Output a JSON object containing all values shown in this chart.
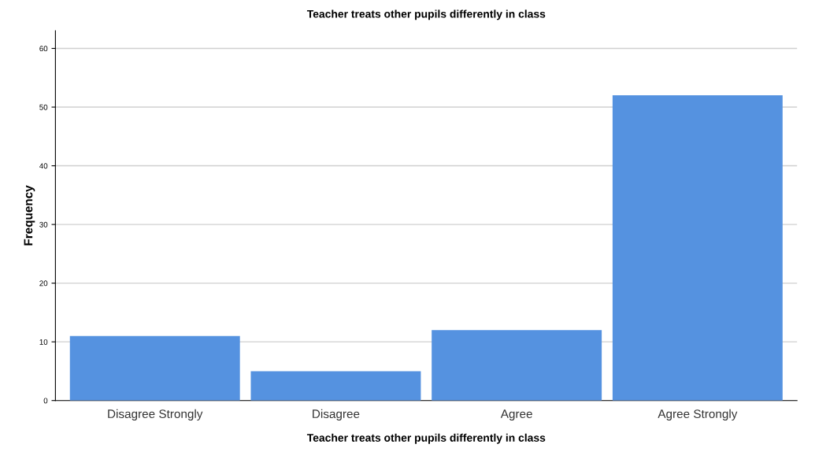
{
  "chart_data": {
    "type": "bar",
    "title": "Teacher treats other pupils differently in class",
    "xlabel": "Teacher treats other pupils differently in class",
    "ylabel": "Frequency",
    "categories": [
      "Disagree Strongly",
      "Disagree",
      "Agree",
      "Agree Strongly"
    ],
    "values": [
      11,
      5,
      12,
      52
    ],
    "color": "#5592e0",
    "ylim": [
      0,
      63
    ],
    "yticks": [
      0,
      10,
      20,
      30,
      40,
      50,
      60
    ],
    "grid": "y",
    "legend": false
  }
}
